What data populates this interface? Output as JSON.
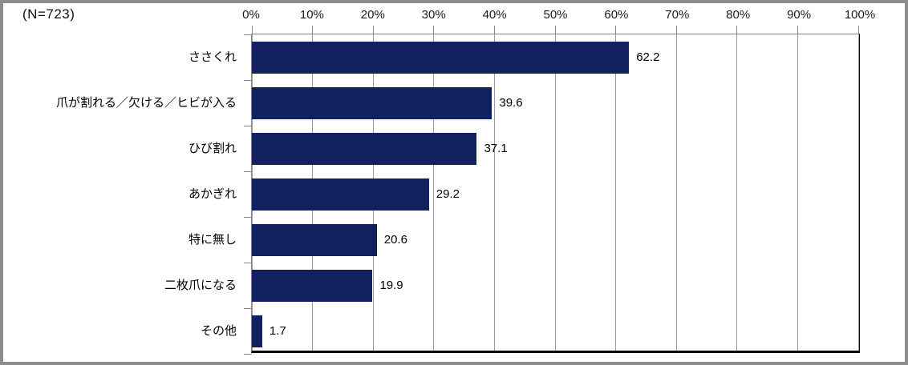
{
  "chart_data": {
    "type": "bar",
    "orientation": "horizontal",
    "n_label": "(N=723)",
    "title": "",
    "categories": [
      "ささくれ",
      "爪が割れる／欠ける／ヒビが入る",
      "ひび割れ",
      "あかぎれ",
      "特に無し",
      "二枚爪になる",
      "その他"
    ],
    "values": [
      62.2,
      39.6,
      37.1,
      29.2,
      20.6,
      19.9,
      1.7
    ],
    "value_labels": [
      "62.2",
      "39.6",
      "37.1",
      "29.2",
      "20.6",
      "19.9",
      "1.7"
    ],
    "x_axis": {
      "position": "top",
      "min": 0,
      "max": 100,
      "tick_step": 10,
      "tick_labels": [
        "0%",
        "10%",
        "20%",
        "30%",
        "40%",
        "50%",
        "60%",
        "70%",
        "80%",
        "90%",
        "100%"
      ]
    },
    "grid": "vertical-only",
    "legend": false,
    "colors": {
      "bar": "#12215e",
      "gridline": "#9c9c9c",
      "axis": "#878787",
      "plot_shadow": "#000000",
      "frame": "#8c8c8c",
      "text": "#000000",
      "background": "#ffffff"
    }
  }
}
